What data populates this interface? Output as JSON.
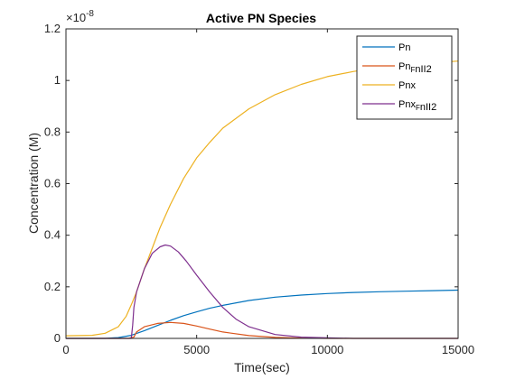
{
  "chart_data": {
    "type": "line",
    "title": "Active PN Species",
    "xlabel": "Time(sec)",
    "ylabel": "Concentration (M)",
    "xlim": [
      0,
      15000
    ],
    "ylim": [
      0,
      1.2
    ],
    "y_exponent_label": "×10",
    "y_exponent_power": "-8",
    "x_ticks": [
      0,
      5000,
      10000,
      15000
    ],
    "x_tick_labels": [
      "0",
      "5000",
      "10000",
      "15000"
    ],
    "y_ticks": [
      0,
      0.2,
      0.4,
      0.6,
      0.8,
      1.0,
      1.2
    ],
    "y_tick_labels": [
      "0",
      "0.2",
      "0.4",
      "0.6",
      "0.8",
      "1",
      "1.2"
    ],
    "grid": false,
    "legend_position": "top-right",
    "series": [
      {
        "name": "Pn",
        "legend_parts": [
          [
            "Pn",
            ""
          ]
        ],
        "color": "#0072BD",
        "x": [
          0,
          1500,
          2000,
          2500,
          3000,
          3500,
          4000,
          4500,
          5000,
          5500,
          6000,
          7000,
          8000,
          9000,
          10000,
          11000,
          12000,
          13000,
          14000,
          15000
        ],
        "y": [
          0.0,
          0.0,
          0.003,
          0.012,
          0.03,
          0.05,
          0.07,
          0.088,
          0.103,
          0.117,
          0.128,
          0.147,
          0.16,
          0.168,
          0.174,
          0.178,
          0.181,
          0.183,
          0.185,
          0.187
        ]
      },
      {
        "name": "Pn_FnII2",
        "legend_parts": [
          [
            "Pn",
            ""
          ],
          [
            "F",
            "sub"
          ],
          [
            "nII2",
            ""
          ]
        ],
        "color": "#D95319",
        "x": [
          0,
          2400,
          2600,
          2700,
          3000,
          3500,
          4000,
          4500,
          5000,
          5500,
          6000,
          7000,
          8000,
          9000,
          10000,
          11000,
          12000,
          15000
        ],
        "y": [
          0.0,
          0.0,
          0.005,
          0.025,
          0.045,
          0.058,
          0.062,
          0.058,
          0.048,
          0.036,
          0.025,
          0.011,
          0.004,
          0.001,
          0.0,
          0.0,
          0.0,
          0.0
        ]
      },
      {
        "name": "Pnx",
        "legend_parts": [
          [
            "Pnx",
            ""
          ]
        ],
        "color": "#EDB120",
        "x": [
          0,
          1000,
          1500,
          2000,
          2300,
          2500,
          2700,
          3000,
          3300,
          3600,
          4000,
          4500,
          5000,
          5500,
          6000,
          7000,
          8000,
          9000,
          10000,
          11000,
          12000,
          13000,
          14000,
          15000
        ],
        "y": [
          0.01,
          0.012,
          0.02,
          0.045,
          0.085,
          0.13,
          0.18,
          0.27,
          0.35,
          0.43,
          0.52,
          0.62,
          0.7,
          0.76,
          0.815,
          0.89,
          0.945,
          0.985,
          1.015,
          1.035,
          1.05,
          1.06,
          1.068,
          1.075
        ]
      },
      {
        "name": "Pnx_FnII2",
        "legend_parts": [
          [
            "Pnx",
            ""
          ],
          [
            "F",
            "sub"
          ],
          [
            "nII2",
            ""
          ]
        ],
        "color": "#7E2F8E",
        "x": [
          0,
          2500,
          2550,
          2600,
          2700,
          3000,
          3300,
          3600,
          3800,
          4000,
          4300,
          4600,
          5000,
          5500,
          6000,
          6500,
          7000,
          8000,
          9000,
          10000,
          11000,
          15000
        ],
        "y": [
          0.0,
          0.0,
          0.05,
          0.12,
          0.18,
          0.27,
          0.33,
          0.355,
          0.362,
          0.358,
          0.335,
          0.3,
          0.245,
          0.18,
          0.12,
          0.075,
          0.045,
          0.015,
          0.005,
          0.002,
          0.0,
          0.0
        ]
      }
    ]
  }
}
